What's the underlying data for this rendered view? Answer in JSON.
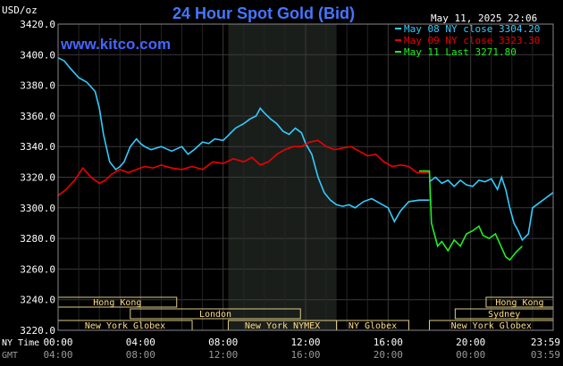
{
  "chart_data": {
    "type": "line",
    "title": "24 Hour Spot Gold (Bid)",
    "ylabel": "USD/oz",
    "url": "www.kitco.com",
    "timestamp": "May 11, 2025 22:06",
    "ylim": [
      3220,
      3420
    ],
    "ytick_labels": [
      "3420.0",
      "3400.0",
      "3380.0",
      "3360.0",
      "3340.0",
      "3320.0",
      "3300.0",
      "3280.0",
      "3260.0",
      "3240.0",
      "3220.0"
    ],
    "ytick_values": [
      3420,
      3400,
      3380,
      3360,
      3340,
      3320,
      3300,
      3280,
      3260,
      3240,
      3220
    ],
    "x_range": [
      0,
      24
    ],
    "x_ticks": [
      0,
      4,
      8,
      12,
      16,
      20,
      24
    ],
    "ny_time_label": "NY Time",
    "gmt_label": "GMT",
    "ny_tick_labels": [
      "00:00",
      "04:00",
      "08:00",
      "12:00",
      "16:00",
      "20:00",
      "23:59"
    ],
    "gmt_tick_labels": [
      "04:00",
      "08:00",
      "12:00",
      "16:00",
      "20:00",
      "00:00",
      "03:59"
    ],
    "shaded_region": [
      8.25,
      13.5
    ],
    "colors": {
      "cyan": "#33ccff",
      "red": "#ee0000",
      "green": "#22ee22",
      "title": "#4477ff",
      "url": "#4466ff",
      "session_text": "#ffdd88",
      "session_box": "#ddcc88"
    },
    "legend": [
      {
        "label": "May 08 NY close 3304.20",
        "color": "#33ccff"
      },
      {
        "label": "May 09 NY close 3323.30",
        "color": "#ee0000"
      },
      {
        "label": "May 11 Last 3271.80",
        "color": "#22ee22"
      }
    ],
    "sessions": [
      {
        "label": "Hong Kong",
        "start": 0,
        "end": 5.75,
        "row": 0
      },
      {
        "label": "London",
        "start": 3.5,
        "end": 11.75,
        "row": 1
      },
      {
        "label": "New York Globex",
        "start": 0,
        "end": 6.5,
        "row": 2
      },
      {
        "label": "New York NYMEX",
        "start": 8.25,
        "end": 13.5,
        "row": 2
      },
      {
        "label": "NY Globex",
        "start": 13.5,
        "end": 17,
        "row": 2
      },
      {
        "label": "Hong Kong",
        "start": 20.75,
        "end": 24,
        "row": 0
      },
      {
        "label": "Sydney",
        "start": 19.25,
        "end": 24,
        "row": 1
      },
      {
        "label": "New York Globex",
        "start": 18,
        "end": 24,
        "row": 2
      }
    ],
    "series": [
      {
        "name": "May 08 NY close 3304.20",
        "color": "#33ccff",
        "x": [
          0,
          0.3,
          0.6,
          1.0,
          1.4,
          1.8,
          2.0,
          2.2,
          2.5,
          2.8,
          3.0,
          3.2,
          3.5,
          3.8,
          4.0,
          4.2,
          4.5,
          5.0,
          5.5,
          6.0,
          6.3,
          6.6,
          7.0,
          7.3,
          7.6,
          8.0,
          8.3,
          8.6,
          9.0,
          9.3,
          9.6,
          9.8,
          10.0,
          10.3,
          10.6,
          10.9,
          11.2,
          11.5,
          11.8,
          12.0,
          12.3,
          12.6,
          12.9,
          13.2,
          13.5,
          13.8,
          14.1,
          14.4,
          14.8,
          15.2,
          15.6,
          16.0,
          16.3,
          16.6,
          17.0,
          17.5,
          18.0
        ],
        "values": [
          3398,
          3396,
          3391,
          3385,
          3382,
          3376,
          3365,
          3348,
          3330,
          3325,
          3327,
          3330,
          3340,
          3345,
          3342,
          3340,
          3338,
          3340,
          3337,
          3340,
          3335,
          3338,
          3343,
          3342,
          3345,
          3344,
          3348,
          3352,
          3355,
          3358,
          3360,
          3365,
          3362,
          3358,
          3355,
          3350,
          3348,
          3352,
          3349,
          3342,
          3335,
          3320,
          3310,
          3305,
          3302,
          3301,
          3302,
          3300,
          3304,
          3306,
          3303,
          3300,
          3291,
          3298,
          3304,
          3305,
          3305
        ]
      },
      {
        "name": "May 09 NY close 3323.30",
        "color": "#ee0000",
        "x": [
          0,
          0.4,
          0.8,
          1.2,
          1.6,
          2.0,
          2.3,
          2.6,
          3.0,
          3.4,
          3.8,
          4.2,
          4.6,
          5.0,
          5.5,
          6.0,
          6.5,
          7.0,
          7.5,
          8.0,
          8.5,
          9.0,
          9.4,
          9.8,
          10.2,
          10.6,
          11.0,
          11.4,
          11.8,
          12.2,
          12.6,
          13.0,
          13.4,
          13.8,
          14.2,
          14.6,
          15.0,
          15.4,
          15.8,
          16.2,
          16.6,
          17.0,
          17.4,
          17.8,
          18.0
        ],
        "values": [
          3308,
          3312,
          3318,
          3326,
          3320,
          3316,
          3318,
          3322,
          3325,
          3323,
          3325,
          3327,
          3326,
          3328,
          3326,
          3325,
          3327,
          3325,
          3330,
          3329,
          3332,
          3330,
          3333,
          3328,
          3330,
          3335,
          3338,
          3340,
          3340,
          3343,
          3344,
          3340,
          3338,
          3339,
          3340,
          3337,
          3334,
          3335,
          3330,
          3327,
          3328,
          3327,
          3323,
          3323,
          3323
        ]
      },
      {
        "name": "May 11 Last 3271.80",
        "color": "#22ee22",
        "x": [
          17.5,
          18.0,
          18.1,
          18.2,
          18.4,
          18.6,
          18.9,
          19.2,
          19.5,
          19.8,
          20.1,
          20.4,
          20.6,
          20.9,
          21.2,
          21.5,
          21.7,
          21.9,
          22.2,
          22.5
        ],
        "values": [
          3324,
          3324,
          3290,
          3285,
          3275,
          3278,
          3272,
          3279,
          3275,
          3283,
          3285,
          3288,
          3282,
          3280,
          3283,
          3274,
          3268,
          3266,
          3271,
          3275
        ]
      },
      {
        "name": "May 08 NY close 3304.20",
        "color": "#33ccff",
        "x": [
          18.0,
          18.3,
          18.6,
          18.9,
          19.2,
          19.5,
          19.8,
          20.1,
          20.4,
          20.7,
          21.0,
          21.3,
          21.5,
          21.7,
          21.9,
          22.1,
          22.3,
          22.5,
          22.8,
          23.0,
          23.3,
          23.6,
          24.0
        ],
        "values": [
          3317,
          3320,
          3316,
          3318,
          3314,
          3318,
          3315,
          3314,
          3318,
          3317,
          3319,
          3312,
          3320,
          3312,
          3300,
          3290,
          3285,
          3279,
          3283,
          3300,
          3303,
          3306,
          3310
        ]
      }
    ]
  }
}
